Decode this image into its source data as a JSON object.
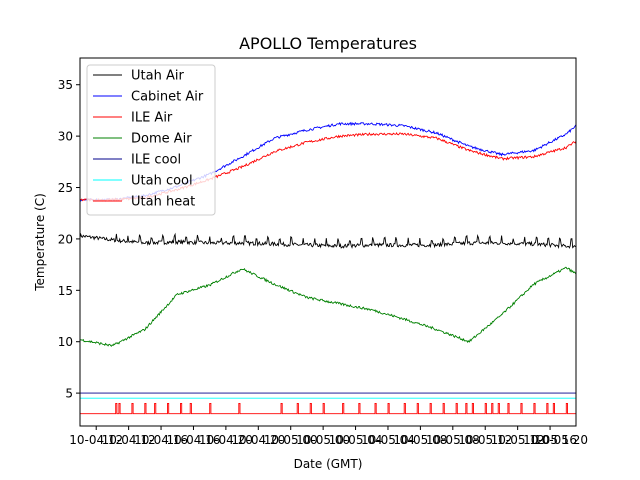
{
  "chart_data": {
    "type": "line",
    "title": "APOLLO Temperatures",
    "xlabel": "Date (GMT)",
    "ylabel": "Temperature (C)",
    "xlim": [
      8.5,
      23.8
    ],
    "ylim": [
      1.8,
      37.6
    ],
    "x_ticks": [
      {
        "x": 10,
        "label": "10-04 12"
      },
      {
        "x": 12,
        "label": "10-04 16"
      },
      {
        "x": 14,
        "label": "10-04 20"
      },
      {
        "x": 16,
        "label": "10-05 00"
      },
      {
        "x": 18,
        "label": "10-05 04"
      },
      {
        "x": 20,
        "label": "10-05 08"
      },
      {
        "x": 22,
        "label": "10-05 12"
      }
    ],
    "x_ticks_extra": [
      {
        "x": 9,
        "label": "10-04 12"
      },
      {
        "x": 11,
        "label": "10-04 16"
      },
      {
        "x": 13,
        "label": "10-04 20"
      },
      {
        "x": 15,
        "label": "10-05 00"
      },
      {
        "x": 17,
        "label": "10-05 04"
      },
      {
        "x": 19,
        "label": "10-05 08"
      },
      {
        "x": 21,
        "label": "10-05 12"
      },
      {
        "x": 23,
        "label": "10-05 16"
      }
    ],
    "x_tick_labels_visible": [
      "10-04 12",
      "10-04 16",
      "10-04 20",
      "10-05 00",
      "10-05 04",
      "10-05 08",
      "10-05 12",
      "10-05 16",
      "10-05 20"
    ],
    "y_ticks": [
      5,
      10,
      15,
      20,
      25,
      30,
      35
    ],
    "legend_position": "top-left",
    "series": [
      {
        "name": "Utah Air",
        "color": "#000000",
        "x": [
          8.5,
          9.5,
          10.5,
          11.5,
          12.5,
          13.5,
          14.5,
          15.5,
          16.5,
          17.5,
          18.5,
          19.5,
          20.5,
          21.5,
          22.5,
          23.5,
          23.8
        ],
        "y": [
          20.3,
          19.9,
          19.6,
          19.7,
          19.6,
          19.6,
          19.5,
          19.4,
          19.3,
          19.4,
          19.4,
          19.4,
          19.6,
          19.6,
          19.5,
          19.3,
          19.3
        ]
      },
      {
        "name": "Cabinet Air",
        "color": "#0000ff",
        "x": [
          8.5,
          9.5,
          10.5,
          11.5,
          12.5,
          13.5,
          14.5,
          15.5,
          16.5,
          17.5,
          18.5,
          19.5,
          20.5,
          21.5,
          22.5,
          23.5,
          23.8
        ],
        "y": [
          23.8,
          23.8,
          24.2,
          25.1,
          26.3,
          28.0,
          29.8,
          30.6,
          31.2,
          31.2,
          31.0,
          30.3,
          29.0,
          28.2,
          28.6,
          30.2,
          31.0
        ]
      },
      {
        "name": "ILE Air",
        "color": "#ff0000",
        "x": [
          8.5,
          9.5,
          10.5,
          11.5,
          12.5,
          13.5,
          14.5,
          15.5,
          16.5,
          17.5,
          18.5,
          19.5,
          20.5,
          21.5,
          22.5,
          23.5,
          23.8
        ],
        "y": [
          23.8,
          23.8,
          24.0,
          24.8,
          25.8,
          27.0,
          28.5,
          29.4,
          30.0,
          30.2,
          30.2,
          29.8,
          28.6,
          27.8,
          28.0,
          28.9,
          29.5
        ]
      },
      {
        "name": "Dome Air",
        "color": "#008000",
        "x": [
          8.5,
          9.5,
          10.5,
          11.5,
          12.5,
          13.5,
          14.5,
          15.5,
          16.5,
          17.5,
          18.5,
          19.5,
          20.5,
          21.5,
          22.5,
          23.5,
          23.8
        ],
        "y": [
          10.2,
          9.6,
          11.2,
          14.6,
          15.5,
          17.1,
          15.6,
          14.3,
          13.7,
          13.1,
          12.2,
          11.2,
          10.0,
          12.6,
          15.6,
          17.2,
          16.6
        ]
      },
      {
        "name": "ILE cool",
        "color": "#00008b",
        "x": [
          8.5,
          23.8
        ],
        "y": [
          5.0,
          5.0
        ]
      },
      {
        "name": "Utah cool",
        "color": "#00ffff",
        "x": [
          8.5,
          23.8
        ],
        "y": [
          4.5,
          4.5
        ]
      },
      {
        "name": "Utah heat",
        "color": "#ff0000",
        "base": 3.0,
        "pulse": 4.0,
        "pulses_x": [
          9.6,
          9.7,
          10.1,
          10.5,
          10.8,
          11.2,
          11.6,
          11.9,
          12.5,
          13.4,
          14.7,
          15.2,
          15.6,
          16.0,
          16.6,
          17.1,
          17.6,
          18.0,
          18.5,
          18.9,
          19.3,
          19.7,
          20.1,
          20.4,
          20.6,
          21.0,
          21.2,
          21.4,
          21.7,
          22.1,
          22.5,
          22.9,
          23.1,
          23.5
        ]
      }
    ]
  }
}
